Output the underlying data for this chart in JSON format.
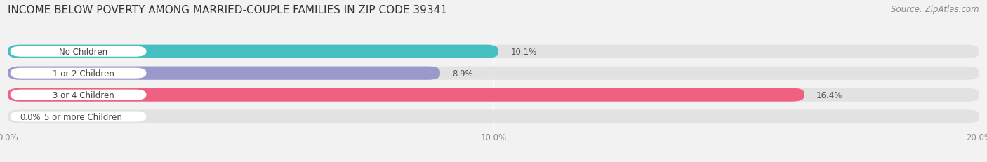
{
  "title": "INCOME BELOW POVERTY AMONG MARRIED-COUPLE FAMILIES IN ZIP CODE 39341",
  "source": "Source: ZipAtlas.com",
  "categories": [
    "No Children",
    "1 or 2 Children",
    "3 or 4 Children",
    "5 or more Children"
  ],
  "values": [
    10.1,
    8.9,
    16.4,
    0.0
  ],
  "bar_colors": [
    "#45bfbf",
    "#9999cc",
    "#f06080",
    "#f5c89a"
  ],
  "xlim": [
    0,
    20.0
  ],
  "xticks": [
    0.0,
    10.0,
    20.0
  ],
  "xticklabels": [
    "0.0%",
    "10.0%",
    "20.0%"
  ],
  "background_color": "#f2f2f2",
  "bar_background_color": "#e2e2e2",
  "label_bg_color": "#ffffff",
  "title_fontsize": 11,
  "source_fontsize": 8.5,
  "label_fontsize": 8.5,
  "value_fontsize": 8.5,
  "tick_fontsize": 8.5
}
